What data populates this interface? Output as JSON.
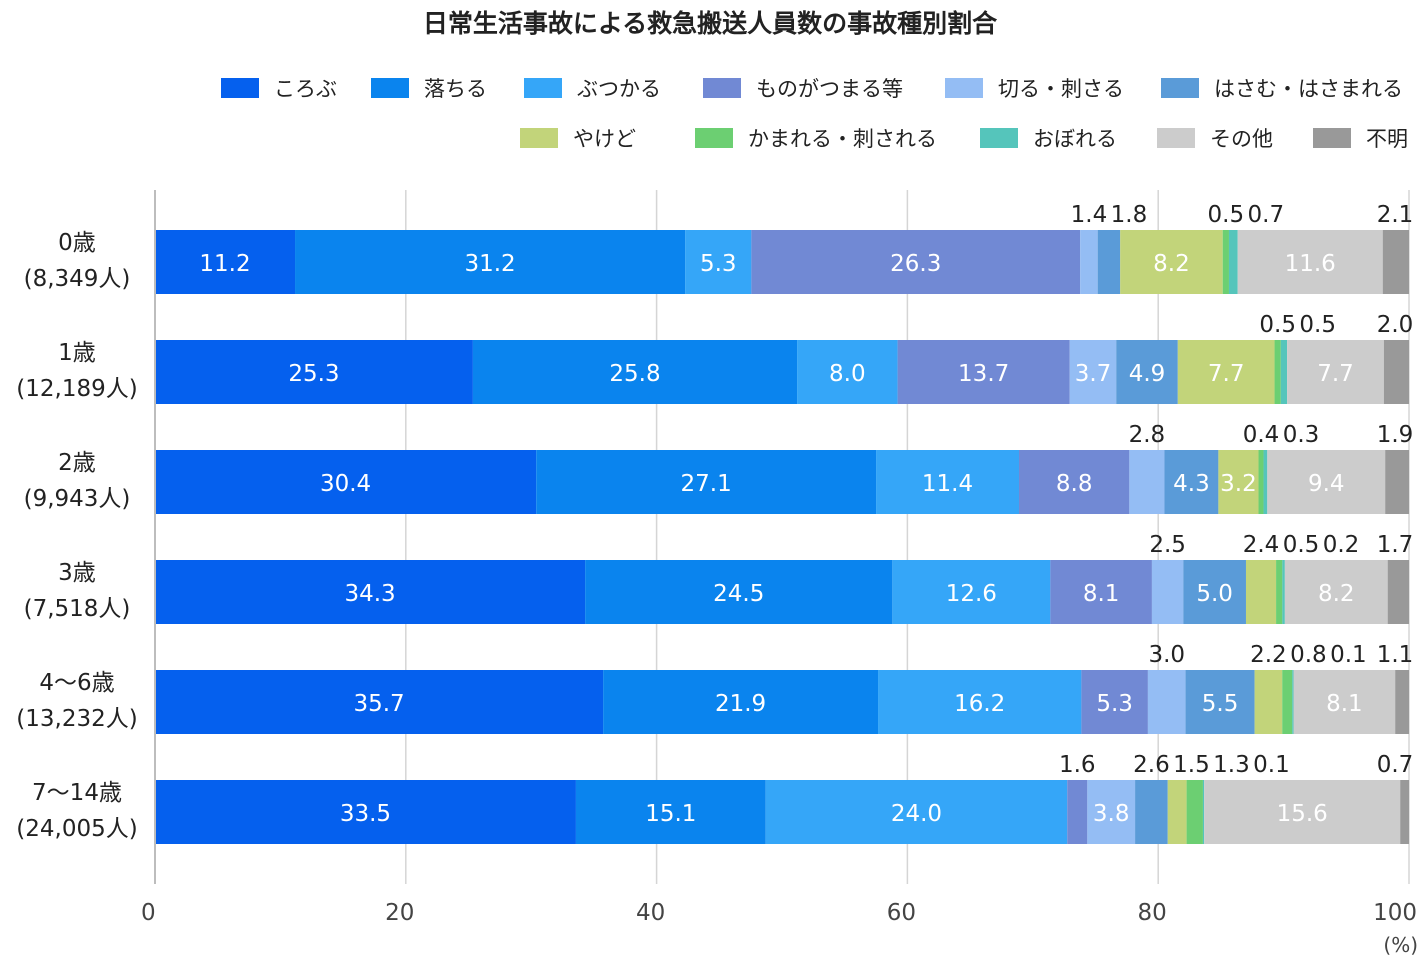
{
  "chart_data": {
    "type": "bar",
    "orientation": "horizontal",
    "stacked": true,
    "title": "日常生活事故による救急搬送人員数の事故種別割合",
    "x_unit": "(%)",
    "xlim": [
      0,
      100
    ],
    "x_ticks": [
      0,
      20,
      40,
      60,
      80,
      100
    ],
    "grid": true,
    "legend_position": "top-right",
    "categories": [
      {
        "label": "0歳",
        "count": "(8,349人)"
      },
      {
        "label": "1歳",
        "count": "(12,189人)"
      },
      {
        "label": "2歳",
        "count": "(9,943人)"
      },
      {
        "label": "3歳",
        "count": "(7,518人)"
      },
      {
        "label": "4〜6歳",
        "count": "(13,232人)"
      },
      {
        "label": "7〜14歳",
        "count": "(24,005人)"
      }
    ],
    "series": [
      {
        "name": "ころぶ",
        "color": "#0560ee",
        "values": [
          11.2,
          25.3,
          30.4,
          34.3,
          35.7,
          33.5
        ]
      },
      {
        "name": "落ちる",
        "color": "#0a84ee",
        "values": [
          31.2,
          25.8,
          27.1,
          24.5,
          21.9,
          15.1
        ]
      },
      {
        "name": "ぶつかる",
        "color": "#35a6f8",
        "values": [
          5.3,
          8.0,
          11.4,
          12.6,
          16.2,
          24.0
        ]
      },
      {
        "name": "ものがつまる等",
        "color": "#7189d4",
        "values": [
          26.3,
          13.7,
          8.8,
          8.1,
          5.3,
          1.6
        ]
      },
      {
        "name": "切る・刺さる",
        "color": "#94bdf4",
        "values": [
          1.4,
          3.7,
          2.8,
          2.5,
          3.0,
          3.8
        ]
      },
      {
        "name": "はさむ・はさまれる",
        "color": "#5a9bd8",
        "values": [
          1.8,
          4.9,
          4.3,
          5.0,
          5.5,
          2.6
        ]
      },
      {
        "name": "やけど",
        "color": "#c2d47a",
        "values": [
          8.2,
          7.7,
          3.2,
          2.4,
          2.2,
          1.5
        ]
      },
      {
        "name": "かまれる・刺される",
        "color": "#6ccf72",
        "values": [
          0.5,
          0.5,
          0.4,
          0.5,
          0.8,
          1.3
        ]
      },
      {
        "name": "おぼれる",
        "color": "#55c5bb",
        "values": [
          0.7,
          0.5,
          0.3,
          0.2,
          0.1,
          0.1
        ]
      },
      {
        "name": "その他",
        "color": "#cccccc",
        "values": [
          11.6,
          7.7,
          9.4,
          8.2,
          8.1,
          15.6
        ]
      },
      {
        "name": "不明",
        "color": "#999999",
        "values": [
          2.1,
          2.0,
          1.9,
          1.7,
          1.1,
          0.7
        ]
      }
    ]
  }
}
